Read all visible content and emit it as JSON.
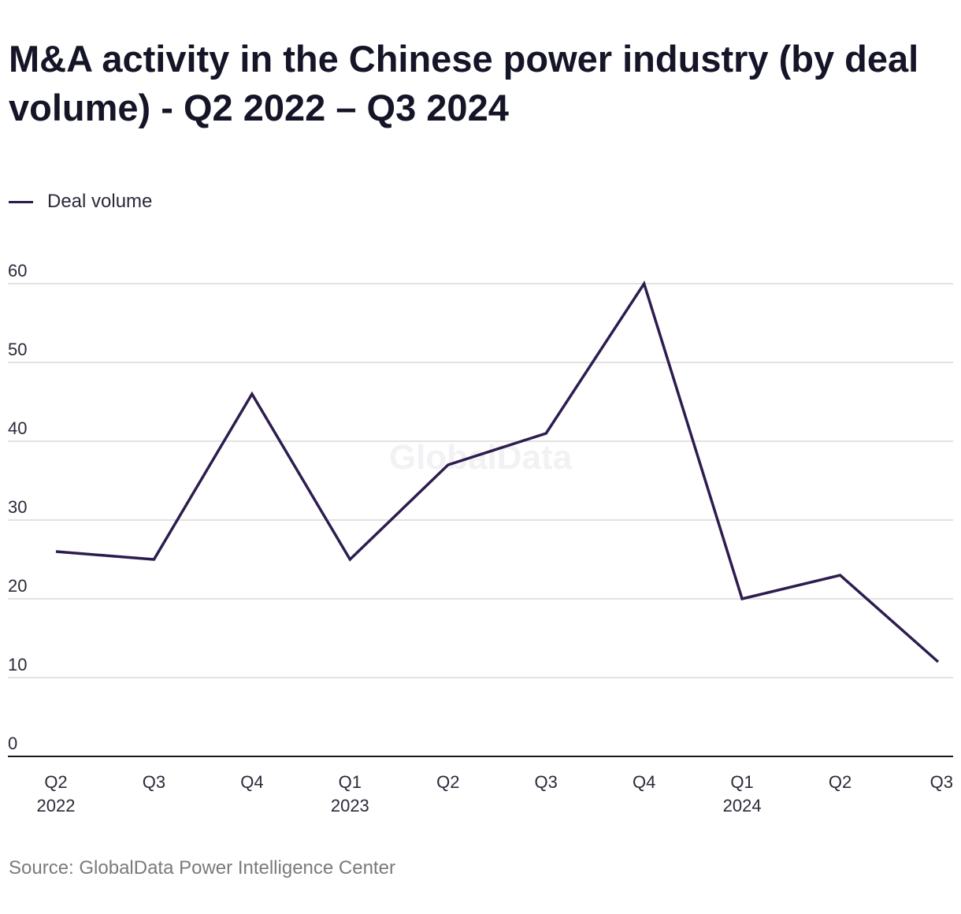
{
  "chart_data": {
    "type": "line",
    "title": "M&A activity in the Chinese power industry (by deal volume) - Q2 2022 – Q3 2024",
    "xlabel": "",
    "ylabel": "",
    "categories": [
      "Q2 2022",
      "Q3",
      "Q4",
      "Q1 2023",
      "Q2",
      "Q3",
      "Q4",
      "Q1 2024",
      "Q2",
      "Q3"
    ],
    "category_labels": [
      [
        "Q2",
        "2022"
      ],
      [
        "Q3",
        ""
      ],
      [
        "Q4",
        ""
      ],
      [
        "Q1",
        "2023"
      ],
      [
        "Q2",
        ""
      ],
      [
        "Q3",
        ""
      ],
      [
        "Q4",
        ""
      ],
      [
        "Q1",
        "2024"
      ],
      [
        "Q2",
        ""
      ],
      [
        "Q3",
        ""
      ]
    ],
    "series": [
      {
        "name": "Deal volume",
        "color": "#2d1d4f",
        "values": [
          26,
          25,
          46,
          25,
          37,
          41,
          60,
          20,
          23,
          12
        ]
      }
    ],
    "ylim": [
      0,
      60
    ],
    "yticks": [
      0,
      10,
      20,
      30,
      40,
      50,
      60
    ],
    "grid": true,
    "legend_position": "top-left",
    "source": "Source: GlobalData Power Intelligence Center",
    "watermark": "GlobalData"
  }
}
